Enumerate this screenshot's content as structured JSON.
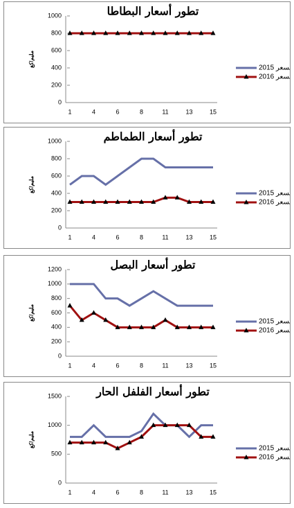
{
  "chart_data": [
    {
      "type": "line",
      "title": "تطور أسعار البطاطا",
      "y_label": "مليم/كغ",
      "categories": [
        "1",
        null,
        "4",
        null,
        "6",
        null,
        "8",
        null,
        "11",
        null,
        "13",
        null,
        "15"
      ],
      "ylim": [
        0,
        1000
      ],
      "yticks": [
        0,
        200,
        400,
        600,
        800,
        1000
      ],
      "series": [
        {
          "name": "السعر 2015",
          "color": "#6670a8",
          "values": [
            800,
            800,
            800,
            800,
            800,
            800,
            800,
            800,
            800,
            800,
            800,
            800,
            800
          ]
        },
        {
          "name": "السعر 2016",
          "color": "#a01010",
          "values": [
            800,
            800,
            800,
            800,
            800,
            800,
            800,
            800,
            800,
            800,
            800,
            800,
            800
          ]
        }
      ]
    },
    {
      "type": "line",
      "title": "تطور أسعار الطماطم",
      "y_label": "مليم/كغ",
      "categories": [
        "1",
        null,
        "4",
        null,
        "6",
        null,
        "8",
        null,
        "11",
        null,
        "13",
        null,
        "15"
      ],
      "ylim": [
        0,
        1000
      ],
      "yticks": [
        0,
        200,
        400,
        600,
        800,
        1000
      ],
      "series": [
        {
          "name": "السعر 2015",
          "color": "#6670a8",
          "values": [
            500,
            600,
            600,
            500,
            600,
            700,
            800,
            800,
            700,
            700,
            700,
            700,
            700
          ]
        },
        {
          "name": "السعر 2016",
          "color": "#a01010",
          "values": [
            300,
            300,
            300,
            300,
            300,
            300,
            300,
            300,
            350,
            350,
            300,
            300,
            300
          ]
        }
      ]
    },
    {
      "type": "line",
      "title": "تطور أسعار البصل",
      "y_label": "مليم/كغ",
      "categories": [
        "1",
        null,
        "4",
        null,
        "6",
        null,
        "8",
        null,
        "11",
        null,
        "13",
        null,
        "15"
      ],
      "ylim": [
        0,
        1200
      ],
      "yticks": [
        0,
        200,
        400,
        600,
        800,
        1000,
        1200
      ],
      "series": [
        {
          "name": "السعر 2015",
          "color": "#6670a8",
          "values": [
            1000,
            1000,
            1000,
            800,
            800,
            700,
            800,
            900,
            800,
            700,
            700,
            700,
            700
          ]
        },
        {
          "name": "السعر 2016",
          "color": "#a01010",
          "values": [
            700,
            500,
            600,
            500,
            400,
            400,
            400,
            400,
            500,
            400,
            400,
            400,
            400
          ]
        }
      ]
    },
    {
      "type": "line",
      "title": "تطور أسعار الفلفل الحار",
      "y_label": "مليم/كغ",
      "categories": [
        "1",
        null,
        "4",
        null,
        "6",
        null,
        "8",
        null,
        "11",
        null,
        "13",
        null,
        "15"
      ],
      "ylim": [
        0,
        1500
      ],
      "yticks": [
        0,
        500,
        1000,
        1500
      ],
      "series": [
        {
          "name": "السعر 2015",
          "color": "#6670a8",
          "values": [
            800,
            800,
            1000,
            800,
            800,
            800,
            900,
            1200,
            1000,
            1000,
            800,
            1000,
            1000
          ]
        },
        {
          "name": "السعر 2016",
          "color": "#a01010",
          "values": [
            700,
            700,
            700,
            700,
            600,
            700,
            800,
            1000,
            1000,
            1000,
            1000,
            800,
            800
          ]
        }
      ]
    }
  ]
}
